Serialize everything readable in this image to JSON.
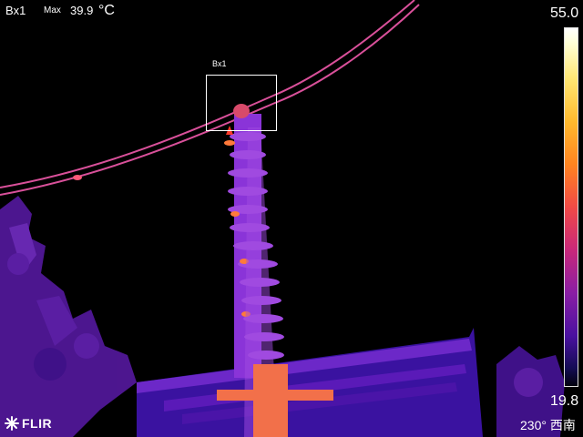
{
  "measurement": {
    "label": "Bx1",
    "max_label": "Max",
    "max_value": "39.9",
    "unit": "°C",
    "box_tag": "Bx1"
  },
  "scale": {
    "max": "55.0",
    "min": "19.8",
    "palette": "iron"
  },
  "logo": {
    "text": "FLIR",
    "icon": "flir-logo-icon"
  },
  "compass": {
    "text": "230° 西南"
  },
  "colors": {
    "background": "#000000",
    "hot": "#ff6a3a",
    "warm": "#d9509a",
    "cool": "#7a2fd0",
    "cold": "#3a10a0"
  }
}
